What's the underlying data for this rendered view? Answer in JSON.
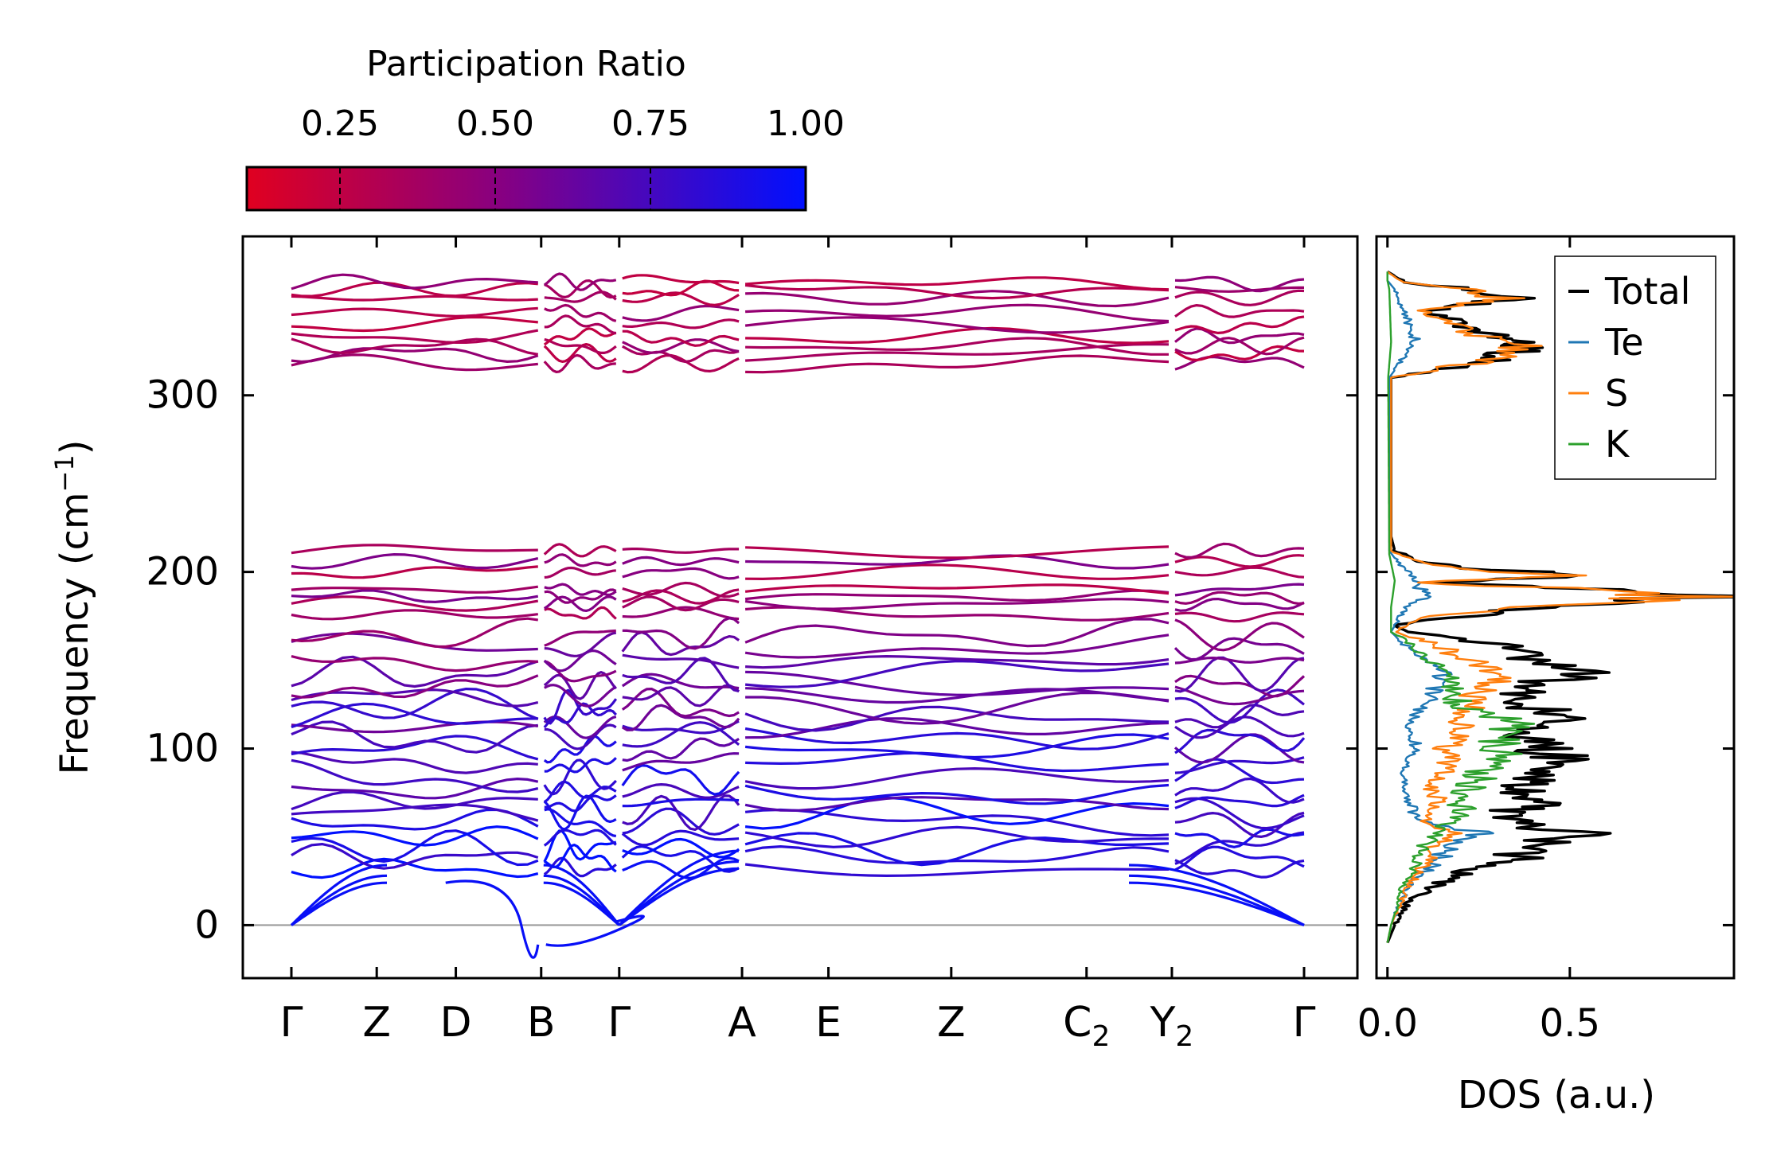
{
  "chart_data": [
    {
      "type": "line",
      "name": "phonon-band-structure",
      "ylabel": "Frequency (cm",
      "ylabel_sup": "−1",
      "ylabel_close": ")",
      "ylim": [
        -30,
        390
      ],
      "yticks": [
        0,
        100,
        200,
        300
      ],
      "xticks": [
        {
          "base": "Γ",
          "sub": "",
          "pos": 0.0
        },
        {
          "base": "Z",
          "sub": "",
          "pos": 0.082
        },
        {
          "base": "D",
          "sub": "",
          "pos": 0.158
        },
        {
          "base": "B",
          "sub": "",
          "pos": 0.24
        },
        {
          "base": "Γ",
          "sub": "",
          "pos": 0.315
        },
        {
          "base": "A",
          "sub": "",
          "pos": 0.433
        },
        {
          "base": "E",
          "sub": "",
          "pos": 0.516
        },
        {
          "base": "Z",
          "sub": "",
          "pos": 0.634
        },
        {
          "base": "C",
          "sub": "2",
          "pos": 0.764
        },
        {
          "base": "Y",
          "sub": "2",
          "pos": 0.846
        },
        {
          "base": "Γ",
          "sub": "",
          "pos": 0.973
        }
      ],
      "segment_breaks": [
        0.24,
        0.315,
        0.433,
        0.846
      ],
      "zero_line": 0,
      "bands_high": [
        318,
        324,
        328,
        333,
        340,
        347,
        355,
        360,
        364
      ],
      "bands_mid": [
        176,
        182,
        186,
        190,
        200,
        206,
        212
      ],
      "bands_low": [
        32,
        38,
        44,
        50,
        58,
        64,
        70,
        76,
        84,
        92,
        100,
        106,
        112,
        118,
        124,
        130,
        136,
        142,
        150,
        158,
        164
      ],
      "acoustic_top": [
        24,
        28,
        34
      ],
      "imaginary_min": -11
    },
    {
      "type": "line",
      "name": "phonon-dos",
      "xlabel": "DOS (a.u.)",
      "xticks": [
        "0.0",
        "0.5"
      ],
      "xlim": [
        -0.03,
        0.95
      ],
      "ylim": [
        -30,
        390
      ],
      "legend_position": "top-right",
      "series": [
        {
          "name": "Total",
          "color": "#000000",
          "peaks": [
            [
              -10,
              0
            ],
            [
              0,
              0.02
            ],
            [
              15,
              0.06
            ],
            [
              30,
              0.2
            ],
            [
              38,
              0.35
            ],
            [
              45,
              0.42
            ],
            [
              52,
              0.5
            ],
            [
              60,
              0.3
            ],
            [
              70,
              0.42
            ],
            [
              78,
              0.38
            ],
            [
              88,
              0.4
            ],
            [
              95,
              0.46
            ],
            [
              105,
              0.38
            ],
            [
              115,
              0.48
            ],
            [
              125,
              0.4
            ],
            [
              135,
              0.36
            ],
            [
              142,
              0.58
            ],
            [
              152,
              0.4
            ],
            [
              160,
              0.28
            ],
            [
              166,
              0.05
            ],
            [
              170,
              0.02
            ],
            [
              180,
              0.4
            ],
            [
              186,
              0.86
            ],
            [
              190,
              0.6
            ],
            [
              194,
              0.1
            ],
            [
              198,
              0.55
            ],
            [
              202,
              0.2
            ],
            [
              206,
              0.1
            ],
            [
              212,
              0.02
            ],
            [
              220,
              0.01
            ],
            [
              310,
              0.01
            ],
            [
              320,
              0.3
            ],
            [
              328,
              0.4
            ],
            [
              335,
              0.25
            ],
            [
              340,
              0.2
            ],
            [
              348,
              0.12
            ],
            [
              355,
              0.35
            ],
            [
              361,
              0.2
            ],
            [
              364,
              0.05
            ],
            [
              370,
              0
            ]
          ]
        },
        {
          "name": "Te",
          "color": "#1f77b4",
          "peaks": [
            [
              -10,
              0
            ],
            [
              0,
              0.01
            ],
            [
              20,
              0.05
            ],
            [
              30,
              0.1
            ],
            [
              45,
              0.18
            ],
            [
              52,
              0.26
            ],
            [
              60,
              0.08
            ],
            [
              70,
              0.06
            ],
            [
              85,
              0.04
            ],
            [
              100,
              0.08
            ],
            [
              115,
              0.06
            ],
            [
              130,
              0.12
            ],
            [
              140,
              0.16
            ],
            [
              150,
              0.1
            ],
            [
              160,
              0.04
            ],
            [
              166,
              0.01
            ],
            [
              180,
              0.05
            ],
            [
              186,
              0.1
            ],
            [
              195,
              0.08
            ],
            [
              205,
              0.03
            ],
            [
              212,
              0.005
            ],
            [
              310,
              0.005
            ],
            [
              320,
              0.04
            ],
            [
              330,
              0.08
            ],
            [
              340,
              0.06
            ],
            [
              350,
              0.04
            ],
            [
              360,
              0.02
            ],
            [
              365,
              0
            ]
          ]
        },
        {
          "name": "S",
          "color": "#ff7f0e",
          "peaks": [
            [
              -10,
              0
            ],
            [
              0,
              0.01
            ],
            [
              20,
              0.05
            ],
            [
              35,
              0.1
            ],
            [
              45,
              0.14
            ],
            [
              52,
              0.18
            ],
            [
              60,
              0.1
            ],
            [
              70,
              0.14
            ],
            [
              80,
              0.12
            ],
            [
              90,
              0.18
            ],
            [
              100,
              0.16
            ],
            [
              110,
              0.2
            ],
            [
              120,
              0.22
            ],
            [
              130,
              0.24
            ],
            [
              142,
              0.34
            ],
            [
              152,
              0.2
            ],
            [
              160,
              0.12
            ],
            [
              166,
              0.02
            ],
            [
              175,
              0.1
            ],
            [
              180,
              0.4
            ],
            [
              186,
              0.84
            ],
            [
              190,
              0.58
            ],
            [
              194,
              0.08
            ],
            [
              198,
              0.54
            ],
            [
              202,
              0.18
            ],
            [
              206,
              0.08
            ],
            [
              212,
              0.01
            ],
            [
              310,
              0.01
            ],
            [
              320,
              0.28
            ],
            [
              328,
              0.36
            ],
            [
              335,
              0.22
            ],
            [
              340,
              0.18
            ],
            [
              348,
              0.1
            ],
            [
              355,
              0.32
            ],
            [
              361,
              0.18
            ],
            [
              364,
              0.04
            ],
            [
              370,
              0
            ]
          ]
        },
        {
          "name": "K",
          "color": "#2ca02c",
          "peaks": [
            [
              -10,
              0
            ],
            [
              0,
              0.01
            ],
            [
              20,
              0.04
            ],
            [
              35,
              0.08
            ],
            [
              45,
              0.1
            ],
            [
              55,
              0.14
            ],
            [
              65,
              0.2
            ],
            [
              75,
              0.22
            ],
            [
              85,
              0.26
            ],
            [
              95,
              0.3
            ],
            [
              105,
              0.32
            ],
            [
              112,
              0.36
            ],
            [
              118,
              0.3
            ],
            [
              125,
              0.2
            ],
            [
              135,
              0.18
            ],
            [
              142,
              0.16
            ],
            [
              150,
              0.12
            ],
            [
              160,
              0.06
            ],
            [
              166,
              0.01
            ],
            [
              180,
              0.01
            ],
            [
              195,
              0.02
            ],
            [
              210,
              0.005
            ],
            [
              310,
              0.002
            ],
            [
              330,
              0.01
            ],
            [
              360,
              0.005
            ],
            [
              365,
              0
            ]
          ]
        }
      ]
    },
    {
      "type": "colorbar",
      "name": "participation-colorbar",
      "title": "Participation Ratio",
      "range": [
        0.1,
        1.0
      ],
      "ticks": [
        {
          "label": "0.25",
          "value": 0.25
        },
        {
          "label": "0.50",
          "value": 0.5
        },
        {
          "label": "0.75",
          "value": 0.75
        },
        {
          "label": "1.00",
          "value": 1.0
        }
      ],
      "color_low": "#e00020",
      "color_mid": "#880080",
      "color_high": "#0010ff"
    }
  ]
}
